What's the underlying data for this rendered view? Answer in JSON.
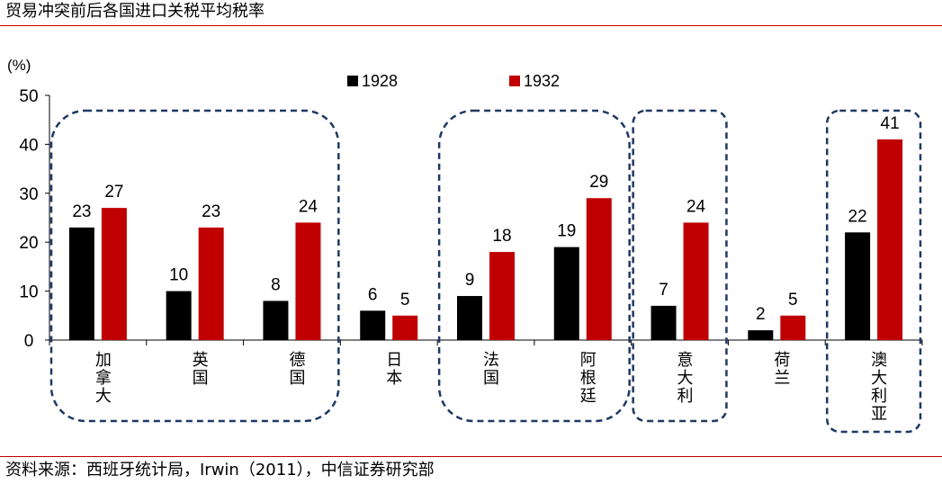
{
  "title": "贸易冲突前后各国进口关税平均税率",
  "source": "资料来源：西班牙统计局，Irwin（2011），中信证券研究部",
  "colors": {
    "series_1928": "#000000",
    "series_1932": "#c00000",
    "rule": "#c00000",
    "dash": "#1f3864"
  },
  "chart_data": {
    "type": "bar",
    "title": "贸易冲突前后各国进口关税平均税率",
    "ylabel": "(%)",
    "ylim": [
      0,
      50
    ],
    "yticks": [
      "0",
      "10",
      "20",
      "30",
      "40",
      "50"
    ],
    "categories": [
      "加拿大",
      "英国",
      "德国",
      "日本",
      "法国",
      "阿根廷",
      "意大利",
      "荷兰",
      "澳大利亚"
    ],
    "series": [
      {
        "name": "1928",
        "values": [
          23,
          10,
          8,
          6,
          9,
          19,
          7,
          2,
          22
        ]
      },
      {
        "name": "1932",
        "values": [
          27,
          23,
          24,
          5,
          18,
          29,
          24,
          5,
          41
        ]
      }
    ],
    "display_values": [
      [
        "23",
        "10",
        "8",
        "6",
        "9",
        "19",
        "7",
        "2",
        "22"
      ],
      [
        "27",
        "23",
        "24",
        "5",
        "18",
        "29",
        "24",
        "5",
        "41"
      ]
    ],
    "legend": [
      "1928",
      "1932"
    ],
    "groups": [
      [
        0,
        2
      ],
      [
        4,
        5
      ],
      [
        6,
        6
      ],
      [
        8,
        8
      ]
    ]
  }
}
